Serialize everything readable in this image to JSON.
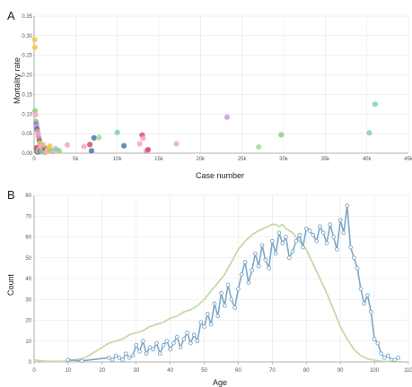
{
  "panel_labels": [
    "A",
    "B"
  ],
  "chart_data": [
    {
      "type": "scatter",
      "panel": "A",
      "xlabel": "Case number",
      "ylabel": "Mortality rate",
      "xlim": [
        0,
        45000
      ],
      "ylim": [
        0,
        0.35
      ],
      "x_ticks": [
        0,
        5000,
        10000,
        15000,
        20000,
        25000,
        30000,
        35000,
        40000,
        45000
      ],
      "x_tick_labels": [
        "0",
        "5k",
        "10k",
        "15k",
        "20k",
        "25k",
        "30k",
        "35k",
        "40k",
        "45k"
      ],
      "y_ticks": [
        0,
        0.05,
        0.1,
        0.15,
        0.2,
        0.25,
        0.3,
        0.35
      ],
      "y_tick_labels": [
        "0.00",
        "0.05",
        "0.10",
        "0.15",
        "0.20",
        "0.25",
        "0.30",
        "0.35"
      ],
      "grid": true,
      "points": [
        {
          "x": 60,
          "y": 0.29,
          "color": "#f2c94c"
        },
        {
          "x": 100,
          "y": 0.27,
          "color": "#f2c94c"
        },
        {
          "x": 120,
          "y": 0.108,
          "color": "#8fd16a"
        },
        {
          "x": 180,
          "y": 0.098,
          "color": "#f4a6c8"
        },
        {
          "x": 220,
          "y": 0.081,
          "color": "#8fd16a"
        },
        {
          "x": 260,
          "y": 0.074,
          "color": "#7b6fd6"
        },
        {
          "x": 300,
          "y": 0.069,
          "color": "#c9a0dc"
        },
        {
          "x": 350,
          "y": 0.062,
          "color": "#4e79a7"
        },
        {
          "x": 420,
          "y": 0.055,
          "color": "#f28e8e"
        },
        {
          "x": 480,
          "y": 0.048,
          "color": "#f4a6c8"
        },
        {
          "x": 520,
          "y": 0.042,
          "color": "#c9a0dc"
        },
        {
          "x": 600,
          "y": 0.037,
          "color": "#f28e8e"
        },
        {
          "x": 650,
          "y": 0.031,
          "color": "#4e79a7"
        },
        {
          "x": 700,
          "y": 0.026,
          "color": "#f2c94c"
        },
        {
          "x": 760,
          "y": 0.021,
          "color": "#8fd16a"
        },
        {
          "x": 820,
          "y": 0.016,
          "color": "#7ad1c4"
        },
        {
          "x": 900,
          "y": 0.012,
          "color": "#f4a6c8"
        },
        {
          "x": 980,
          "y": 0.009,
          "color": "#f2c94c"
        },
        {
          "x": 1050,
          "y": 0.006,
          "color": "#4e79a7"
        },
        {
          "x": 1150,
          "y": 0.004,
          "color": "#f4b183"
        },
        {
          "x": 1250,
          "y": 0.002,
          "color": "#8fd16a"
        },
        {
          "x": 300,
          "y": 0.014,
          "color": "#d94f4f"
        },
        {
          "x": 350,
          "y": 0.009,
          "color": "#d94f4f"
        },
        {
          "x": 400,
          "y": 0.003,
          "color": "#4e79a7"
        },
        {
          "x": 500,
          "y": 0.006,
          "color": "#f2c94c"
        },
        {
          "x": 600,
          "y": 0.011,
          "color": "#c9a0dc"
        },
        {
          "x": 700,
          "y": 0.004,
          "color": "#7b6fd6"
        },
        {
          "x": 800,
          "y": 0.019,
          "color": "#f4a6c8"
        },
        {
          "x": 900,
          "y": 0.005,
          "color": "#8fd16a"
        },
        {
          "x": 1000,
          "y": 0.015,
          "color": "#f4b183"
        },
        {
          "x": 1150,
          "y": 0.008,
          "color": "#c9a0dc"
        },
        {
          "x": 1300,
          "y": 0.012,
          "color": "#4e79a7"
        },
        {
          "x": 1450,
          "y": 0.003,
          "color": "#f4a6c8"
        },
        {
          "x": 1600,
          "y": 0.009,
          "color": "#f2c94c"
        },
        {
          "x": 1800,
          "y": 0.013,
          "color": "#f4b183"
        },
        {
          "x": 2000,
          "y": 0.007,
          "color": "#8fd16a"
        },
        {
          "x": 2300,
          "y": 0.004,
          "color": "#f4a6c8"
        },
        {
          "x": 2600,
          "y": 0.011,
          "color": "#7ad1c4"
        },
        {
          "x": 3000,
          "y": 0.006,
          "color": "#8fd16a"
        },
        {
          "x": 1100,
          "y": 0.021,
          "color": "#f4b183"
        },
        {
          "x": 1900,
          "y": 0.018,
          "color": "#f2c94c"
        },
        {
          "x": 4000,
          "y": 0.021,
          "color": "#f4a6c8"
        },
        {
          "x": 6000,
          "y": 0.017,
          "color": "#f4a6c8"
        },
        {
          "x": 6700,
          "y": 0.022,
          "color": "#d94f4f"
        },
        {
          "x": 6900,
          "y": 0.006,
          "color": "#4e79a7"
        },
        {
          "x": 7200,
          "y": 0.039,
          "color": "#4e79a7"
        },
        {
          "x": 7800,
          "y": 0.04,
          "color": "#a8d8a8"
        },
        {
          "x": 10000,
          "y": 0.053,
          "color": "#7ad1c4"
        },
        {
          "x": 10800,
          "y": 0.019,
          "color": "#4e79a7"
        },
        {
          "x": 13000,
          "y": 0.046,
          "color": "#d94f4f"
        },
        {
          "x": 13100,
          "y": 0.038,
          "color": "#f4a6c8"
        },
        {
          "x": 12700,
          "y": 0.024,
          "color": "#f4a6c8"
        },
        {
          "x": 13500,
          "y": 0.005,
          "color": "#c9a0dc"
        },
        {
          "x": 13700,
          "y": 0.009,
          "color": "#d94f4f"
        },
        {
          "x": 17100,
          "y": 0.024,
          "color": "#f4a6c8"
        },
        {
          "x": 23200,
          "y": 0.092,
          "color": "#c9a0dc"
        },
        {
          "x": 27000,
          "y": 0.016,
          "color": "#a8d8a8"
        },
        {
          "x": 29700,
          "y": 0.047,
          "color": "#8fd16a"
        },
        {
          "x": 40300,
          "y": 0.052,
          "color": "#7ad1c4"
        },
        {
          "x": 41000,
          "y": 0.125,
          "color": "#7ad1c4"
        }
      ]
    },
    {
      "type": "line",
      "panel": "B",
      "xlabel": "Age",
      "ylabel": "Count",
      "xlim": [
        0,
        110
      ],
      "ylim": [
        0,
        80
      ],
      "x_ticks": [
        0,
        10,
        20,
        30,
        40,
        50,
        60,
        70,
        80,
        90,
        100,
        110
      ],
      "x_tick_labels": [
        "0",
        "10",
        "20",
        "30",
        "40",
        "50",
        "60",
        "70",
        "80",
        "90",
        "100",
        "110"
      ],
      "y_ticks": [
        0,
        10,
        20,
        30,
        40,
        50,
        60,
        70,
        80
      ],
      "y_tick_labels": [
        "0",
        "10",
        "20",
        "30",
        "40",
        "50",
        "60",
        "70",
        "80"
      ],
      "grid": true,
      "series": [
        {
          "color": "#c7d9a8",
          "markers": false,
          "x": [
            0,
            2,
            4,
            6,
            8,
            10,
            12,
            14,
            15,
            16,
            17,
            18,
            19,
            20,
            22,
            24,
            26,
            28,
            30,
            32,
            34,
            36,
            38,
            40,
            42,
            44,
            46,
            48,
            50,
            52,
            54,
            56,
            58,
            60,
            62,
            64,
            66,
            68,
            70,
            71,
            72,
            73,
            74,
            76,
            78,
            80,
            82,
            84,
            86,
            88,
            90,
            92,
            94,
            96,
            98,
            100,
            102,
            104,
            106,
            108
          ],
          "y": [
            1,
            0.5,
            0.3,
            0.3,
            0.3,
            0.5,
            1,
            1.5,
            2,
            3,
            4,
            5,
            6,
            7,
            9,
            10,
            11,
            13,
            14,
            15,
            17,
            18,
            19,
            21,
            22,
            24,
            25,
            27,
            30,
            34,
            38,
            42,
            48,
            54,
            58,
            61,
            63,
            64.5,
            66,
            66,
            65,
            66,
            64,
            62,
            58,
            54,
            47,
            40,
            33,
            25,
            17,
            11,
            6,
            3,
            1.5,
            0.8,
            0.3,
            0.2,
            0.1,
            0
          ]
        },
        {
          "color": "#7ba7c9",
          "markers": true,
          "x": [
            10,
            14,
            22,
            23,
            24,
            25,
            26,
            27,
            28,
            29,
            30,
            31,
            32,
            33,
            34,
            35,
            36,
            37,
            38,
            39,
            40,
            41,
            42,
            43,
            44,
            45,
            46,
            47,
            48,
            49,
            50,
            51,
            52,
            53,
            54,
            55,
            56,
            57,
            58,
            59,
            60,
            61,
            62,
            63,
            64,
            65,
            66,
            67,
            68,
            69,
            70,
            71,
            72,
            73,
            74,
            75,
            76,
            77,
            78,
            79,
            80,
            81,
            82,
            83,
            84,
            85,
            86,
            87,
            88,
            89,
            90,
            91,
            92,
            93,
            94,
            95,
            96,
            97,
            98,
            99,
            100,
            101,
            102,
            103,
            104,
            105,
            106,
            107
          ],
          "y": [
            1,
            0.5,
            2,
            1,
            3,
            2,
            1,
            4,
            2,
            3,
            8,
            5,
            10,
            4,
            7,
            6,
            9,
            4,
            8,
            10,
            6,
            9,
            12,
            7,
            11,
            14,
            9,
            13,
            10,
            19,
            17,
            23,
            18,
            28,
            22,
            33,
            27,
            37,
            30,
            26,
            35,
            42,
            48,
            38,
            44,
            52,
            46,
            56,
            49,
            45,
            58,
            52,
            62,
            57,
            60,
            50,
            53,
            58,
            61,
            55,
            64,
            63,
            61,
            58,
            65,
            62,
            57,
            66,
            60,
            54,
            68,
            62,
            75,
            55,
            50,
            45,
            35,
            28,
            32,
            24,
            11,
            9,
            4,
            2,
            3,
            1,
            1,
            2
          ]
        }
      ]
    }
  ]
}
